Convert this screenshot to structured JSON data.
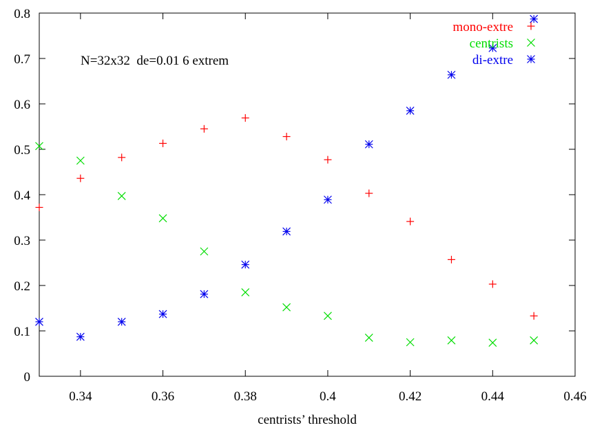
{
  "chart_data": {
    "type": "scatter",
    "title": "",
    "xlabel": "centrists’ threshold",
    "ylabel": "",
    "xlim": [
      0.33,
      0.46
    ],
    "ylim": [
      0,
      0.8
    ],
    "xticks": [
      0.34,
      0.36,
      0.38,
      0.4,
      0.42,
      0.44,
      0.46
    ],
    "xtick_labels": [
      "0.34",
      "0.36",
      "0.38",
      "0.4",
      "0.42",
      "0.44",
      "0.46"
    ],
    "yticks": [
      0,
      0.1,
      0.2,
      0.3,
      0.4,
      0.5,
      0.6,
      0.7,
      0.8
    ],
    "ytick_labels": [
      "0",
      "0.1",
      "0.2",
      "0.3",
      "0.4",
      "0.5",
      "0.6",
      "0.7",
      "0.8"
    ],
    "grid": false,
    "legend_position": "top-right",
    "annotation": "N=32x32  de=0.01 6 extrem",
    "series": [
      {
        "name": "mono-extre",
        "marker": "plus",
        "color": "#ff0000",
        "x": [
          0.33,
          0.34,
          0.35,
          0.36,
          0.37,
          0.38,
          0.39,
          0.4,
          0.41,
          0.42,
          0.43,
          0.44,
          0.45
        ],
        "y": [
          0.372,
          0.436,
          0.482,
          0.513,
          0.545,
          0.569,
          0.528,
          0.477,
          0.403,
          0.341,
          0.257,
          0.203,
          0.133
        ]
      },
      {
        "name": "centrists",
        "marker": "cross",
        "color": "#00dd00",
        "x": [
          0.33,
          0.34,
          0.35,
          0.36,
          0.37,
          0.38,
          0.39,
          0.4,
          0.41,
          0.42,
          0.43,
          0.44,
          0.45
        ],
        "y": [
          0.507,
          0.475,
          0.397,
          0.348,
          0.275,
          0.185,
          0.152,
          0.133,
          0.085,
          0.075,
          0.079,
          0.074,
          0.079
        ]
      },
      {
        "name": "di-extre",
        "marker": "star",
        "color": "#0000ee",
        "x": [
          0.33,
          0.34,
          0.35,
          0.36,
          0.37,
          0.38,
          0.39,
          0.4,
          0.41,
          0.42,
          0.43,
          0.44,
          0.45
        ],
        "y": [
          0.12,
          0.087,
          0.12,
          0.137,
          0.181,
          0.246,
          0.319,
          0.389,
          0.511,
          0.585,
          0.664,
          0.723,
          0.787
        ]
      }
    ]
  }
}
